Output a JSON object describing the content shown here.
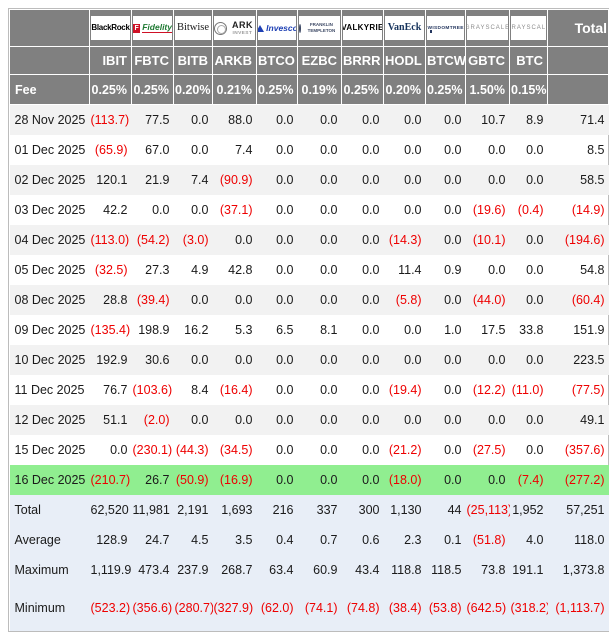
{
  "colors": {
    "header_bg": "#808080",
    "header_text": "#ffffff",
    "body_text": "#1a1a1a",
    "negative_text": "#ee0000",
    "alt_row_bg": "#f2f2f2",
    "row_bg": "#ffffff",
    "highlight_row_bg": "#90ee90",
    "summary_row_bg": "#e8eef7"
  },
  "chart_data": {
    "type": "table",
    "negative_format": "parentheses-red",
    "header": {
      "total_label": "Total",
      "fee_label": "Fee",
      "issuers": [
        {
          "id": "blackrock",
          "logo_text": "BlackRock",
          "ticker": "IBIT",
          "fee": "0.25%"
        },
        {
          "id": "fidelity",
          "logo_icon": "fidelity-f-icon",
          "logo_icon_text": "F",
          "logo_text": "Fidelity",
          "ticker": "FBTC",
          "fee": "0.25%"
        },
        {
          "id": "bitwise",
          "logo_text": "Bitwise",
          "ticker": "BITB",
          "fee": "0.20%"
        },
        {
          "id": "ark",
          "logo_icon": "ark-circle-icon",
          "logo_text": "ARK",
          "logo_sub": "INVEST",
          "ticker": "ARKB",
          "fee": "0.21%"
        },
        {
          "id": "invesco",
          "logo_icon": "invesco-triangle-icon",
          "logo_text": "Invesco",
          "ticker": "BTCO",
          "fee": "0.25%"
        },
        {
          "id": "franklin",
          "logo_icon": "franklin-circle-icon",
          "logo_text": "FRANKLIN",
          "logo_sub": "TEMPLETON",
          "ticker": "EZBC",
          "fee": "0.19%"
        },
        {
          "id": "valkyrie",
          "logo_text": "VALKYRIE",
          "ticker": "BRRR",
          "fee": "0.25%"
        },
        {
          "id": "vaneck",
          "logo_text": "VanEck",
          "ticker": "HODL",
          "fee": "0.20%"
        },
        {
          "id": "wisdomtree",
          "logo_icon": "wisdomtree-tree-icon",
          "logo_text": "WISDOMTREE",
          "ticker": "BTCW",
          "fee": "0.25%"
        },
        {
          "id": "grayscale-gbtc",
          "logo_text": "GRAYSCALE",
          "ticker": "GBTC",
          "fee": "1.50%"
        },
        {
          "id": "grayscale-btc",
          "logo_text": "GRAYSCALE",
          "ticker": "BTC",
          "fee": "0.15%"
        }
      ]
    },
    "daily_rows": [
      {
        "date": "28 Nov 2025",
        "values": [
          "(113.7)",
          "77.5",
          "0.0",
          "88.0",
          "0.0",
          "0.0",
          "0.0",
          "0.0",
          "0.0",
          "10.7",
          "8.9"
        ],
        "total": "71.4",
        "highlight": false
      },
      {
        "date": "01 Dec 2025",
        "values": [
          "(65.9)",
          "67.0",
          "0.0",
          "7.4",
          "0.0",
          "0.0",
          "0.0",
          "0.0",
          "0.0",
          "0.0",
          "0.0"
        ],
        "total": "8.5",
        "highlight": false
      },
      {
        "date": "02 Dec 2025",
        "values": [
          "120.1",
          "21.9",
          "7.4",
          "(90.9)",
          "0.0",
          "0.0",
          "0.0",
          "0.0",
          "0.0",
          "0.0",
          "0.0"
        ],
        "total": "58.5",
        "highlight": false
      },
      {
        "date": "03 Dec 2025",
        "values": [
          "42.2",
          "0.0",
          "0.0",
          "(37.1)",
          "0.0",
          "0.0",
          "0.0",
          "0.0",
          "0.0",
          "(19.6)",
          "(0.4)"
        ],
        "total": "(14.9)",
        "highlight": false
      },
      {
        "date": "04 Dec 2025",
        "values": [
          "(113.0)",
          "(54.2)",
          "(3.0)",
          "0.0",
          "0.0",
          "0.0",
          "0.0",
          "(14.3)",
          "0.0",
          "(10.1)",
          "0.0"
        ],
        "total": "(194.6)",
        "highlight": false
      },
      {
        "date": "05 Dec 2025",
        "values": [
          "(32.5)",
          "27.3",
          "4.9",
          "42.8",
          "0.0",
          "0.0",
          "0.0",
          "11.4",
          "0.9",
          "0.0",
          "0.0"
        ],
        "total": "54.8",
        "highlight": false
      },
      {
        "date": "08 Dec 2025",
        "values": [
          "28.8",
          "(39.4)",
          "0.0",
          "0.0",
          "0.0",
          "0.0",
          "0.0",
          "(5.8)",
          "0.0",
          "(44.0)",
          "0.0"
        ],
        "total": "(60.4)",
        "highlight": false
      },
      {
        "date": "09 Dec 2025",
        "values": [
          "(135.4)",
          "198.9",
          "16.2",
          "5.3",
          "6.5",
          "8.1",
          "0.0",
          "0.0",
          "1.0",
          "17.5",
          "33.8"
        ],
        "total": "151.9",
        "highlight": false
      },
      {
        "date": "10 Dec 2025",
        "values": [
          "192.9",
          "30.6",
          "0.0",
          "0.0",
          "0.0",
          "0.0",
          "0.0",
          "0.0",
          "0.0",
          "0.0",
          "0.0"
        ],
        "total": "223.5",
        "highlight": false
      },
      {
        "date": "11 Dec 2025",
        "values": [
          "76.7",
          "(103.6)",
          "8.4",
          "(16.4)",
          "0.0",
          "0.0",
          "0.0",
          "(19.4)",
          "0.0",
          "(12.2)",
          "(11.0)"
        ],
        "total": "(77.5)",
        "highlight": false
      },
      {
        "date": "12 Dec 2025",
        "values": [
          "51.1",
          "(2.0)",
          "0.0",
          "0.0",
          "0.0",
          "0.0",
          "0.0",
          "0.0",
          "0.0",
          "0.0",
          "0.0"
        ],
        "total": "49.1",
        "highlight": false
      },
      {
        "date": "15 Dec 2025",
        "values": [
          "0.0",
          "(230.1)",
          "(44.3)",
          "(34.5)",
          "0.0",
          "0.0",
          "0.0",
          "(21.2)",
          "0.0",
          "(27.5)",
          "0.0"
        ],
        "total": "(357.6)",
        "highlight": false
      },
      {
        "date": "16 Dec 2025",
        "values": [
          "(210.7)",
          "26.7",
          "(50.9)",
          "(16.9)",
          "0.0",
          "0.0",
          "0.0",
          "(18.0)",
          "0.0",
          "0.0",
          "(7.4)"
        ],
        "total": "(277.2)",
        "highlight": true
      }
    ],
    "summary_rows": [
      {
        "label": "Total",
        "values": [
          "62,520",
          "11,981",
          "2,191",
          "1,693",
          "216",
          "337",
          "300",
          "1,130",
          "44",
          "(25,113)",
          "1,952"
        ],
        "total": "57,251"
      },
      {
        "label": "Average",
        "values": [
          "128.9",
          "24.7",
          "4.5",
          "3.5",
          "0.4",
          "0.7",
          "0.6",
          "2.3",
          "0.1",
          "(51.8)",
          "4.0"
        ],
        "total": "118.0"
      },
      {
        "label": "Maximum",
        "values": [
          "1,119.9",
          "473.4",
          "237.9",
          "268.7",
          "63.4",
          "60.9",
          "43.4",
          "118.8",
          "118.5",
          "73.8",
          "191.1"
        ],
        "total": "1,373.8"
      },
      {
        "label": "Minimum",
        "values": [
          "(523.2)",
          "(356.6)",
          "(280.7)",
          "(327.9)",
          "(62.0)",
          "(74.1)",
          "(74.8)",
          "(38.4)",
          "(53.8)",
          "(642.5)",
          "(318.2)"
        ],
        "total": "(1,113.7)"
      }
    ]
  }
}
